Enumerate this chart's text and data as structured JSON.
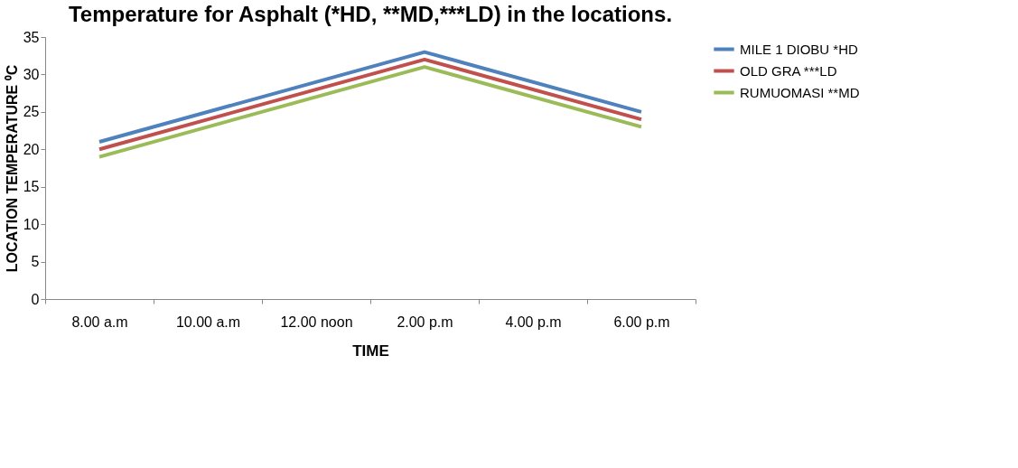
{
  "chart_data": {
    "type": "line",
    "title": "Temperature for Asphalt (*HD, **MD,***LD) in the locations.",
    "xlabel": "TIME",
    "ylabel": "LOCATION TEMPERATURE ⁰C",
    "categories": [
      "8.00 a.m",
      "10.00 a.m",
      "12.00 noon",
      "2.00 p.m",
      "4.00 p.m",
      "6.00 p.m"
    ],
    "series": [
      {
        "name": "MILE 1 DIOBU *HD",
        "color": "#4f81bd",
        "values": [
          21,
          null,
          null,
          33,
          null,
          25
        ]
      },
      {
        "name": "OLD GRA ***LD",
        "color": "#c0504d",
        "values": [
          20,
          null,
          null,
          32,
          null,
          24
        ]
      },
      {
        "name": "RUMUOMASI **MD",
        "color": "#9bbb59",
        "values": [
          19,
          null,
          null,
          31,
          null,
          23
        ]
      }
    ],
    "ylim": [
      0,
      35
    ],
    "yticks": [
      0,
      5,
      10,
      15,
      20,
      25,
      30,
      35
    ],
    "grid": false,
    "legend": "right",
    "marker": "none",
    "line_style": "solid"
  }
}
